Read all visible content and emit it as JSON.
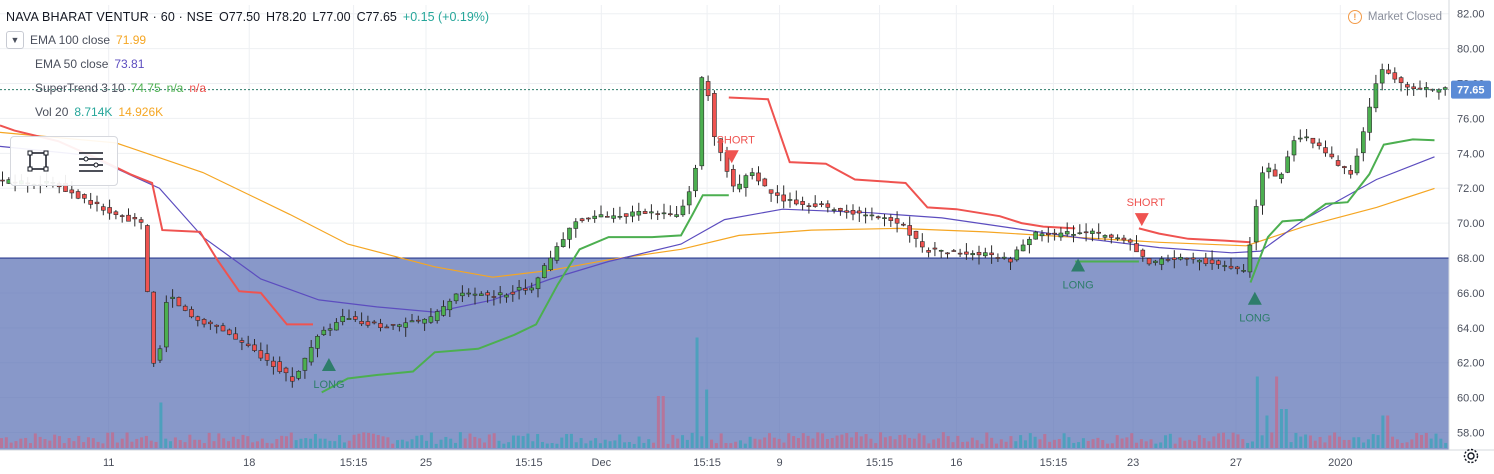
{
  "header": {
    "symbol": "NAVA BHARAT VENTUR · 60 · NSE",
    "open": "O77.50",
    "high": "H78.20",
    "low": "L77.00",
    "close": "C77.65",
    "change": "+0.15 (+0.19%)"
  },
  "indicators": [
    {
      "name": "EMA 100 close",
      "values": [
        "71.99"
      ],
      "colors": [
        "#f5a623"
      ]
    },
    {
      "name": "EMA 50 close",
      "values": [
        "73.81"
      ],
      "colors": [
        "#5c4dbf"
      ]
    },
    {
      "name": "SuperTrend 3 10",
      "values": [
        "74.75",
        "n/a",
        "n/a"
      ],
      "colors": [
        "#4caf50",
        "#4caf50",
        "#ef5350"
      ]
    },
    {
      "name": "Vol 20",
      "values": [
        "8.714K",
        "14.926K"
      ],
      "colors": [
        "#26a69a",
        "#f5a623"
      ]
    }
  ],
  "market_status": "Market Closed",
  "icons": {
    "collapse": "chevron-down-icon",
    "rectangle_tool": "rectangle-tool-icon",
    "settings_list": "list-icon",
    "gear": "gear-icon",
    "warning": "warning-icon"
  },
  "colors": {
    "up": "#4caf50",
    "down": "#ef5350",
    "ema100": "#f5a623",
    "ema50": "#5c4dbf",
    "supertrend_up": "#4caf50",
    "supertrend_down": "#ef5350",
    "zone": "#5a70b4",
    "price_label_bg": "#5b8bd6",
    "signal_long": "#2e7d6b",
    "signal_short": "#ef5350"
  },
  "chart_data": {
    "type": "candlestick",
    "ylim": [
      57,
      82.5
    ],
    "yticks": [
      "82.00",
      "80.00",
      "78.00",
      "76.00",
      "74.00",
      "72.00",
      "70.00",
      "68.00",
      "66.00",
      "64.00",
      "62.00",
      "60.00",
      "58.00"
    ],
    "xticks": [
      "11",
      "18",
      "15:15",
      "25",
      "15:15",
      "Dec",
      "15:15",
      "9",
      "15:15",
      "16",
      "15:15",
      "23",
      "27",
      "2020"
    ],
    "last_price": "77.65",
    "shaded_zone": {
      "from": 57,
      "to": 68
    },
    "signals": [
      {
        "label": "LONG",
        "type": "long",
        "x": 0.227,
        "price": 62.5
      },
      {
        "label": "SHORT",
        "type": "short",
        "x": 0.505,
        "price": 73.2
      },
      {
        "label": "LONG",
        "type": "long",
        "x": 0.744,
        "price": 68.2
      },
      {
        "label": "SHORT",
        "type": "short",
        "x": 0.788,
        "price": 69.6
      },
      {
        "label": "LONG",
        "type": "long",
        "x": 0.866,
        "price": 66.3
      }
    ],
    "price_path": [
      [
        0.0,
        72.4
      ],
      [
        0.04,
        72.3
      ],
      [
        0.065,
        71.2
      ],
      [
        0.08,
        70.5
      ],
      [
        0.1,
        70.0
      ],
      [
        0.11,
        60.8
      ],
      [
        0.118,
        66.0
      ],
      [
        0.135,
        64.6
      ],
      [
        0.155,
        64.0
      ],
      [
        0.17,
        63.1
      ],
      [
        0.19,
        62.0
      ],
      [
        0.205,
        61.0
      ],
      [
        0.222,
        63.5
      ],
      [
        0.24,
        64.6
      ],
      [
        0.255,
        64.2
      ],
      [
        0.275,
        64.1
      ],
      [
        0.3,
        64.5
      ],
      [
        0.32,
        66.0
      ],
      [
        0.345,
        65.8
      ],
      [
        0.37,
        66.4
      ],
      [
        0.385,
        68.3
      ],
      [
        0.4,
        70.2
      ],
      [
        0.42,
        70.4
      ],
      [
        0.45,
        70.6
      ],
      [
        0.47,
        70.4
      ],
      [
        0.482,
        72.5
      ],
      [
        0.488,
        79.4
      ],
      [
        0.495,
        75.0
      ],
      [
        0.51,
        71.7
      ],
      [
        0.52,
        73.1
      ],
      [
        0.535,
        71.6
      ],
      [
        0.55,
        71.2
      ],
      [
        0.57,
        71.0
      ],
      [
        0.59,
        70.6
      ],
      [
        0.61,
        70.3
      ],
      [
        0.625,
        70.0
      ],
      [
        0.64,
        68.5
      ],
      [
        0.66,
        68.3
      ],
      [
        0.68,
        68.2
      ],
      [
        0.7,
        67.9
      ],
      [
        0.715,
        69.4
      ],
      [
        0.735,
        69.3
      ],
      [
        0.75,
        69.6
      ],
      [
        0.765,
        69.2
      ],
      [
        0.78,
        69.0
      ],
      [
        0.795,
        67.6
      ],
      [
        0.81,
        68.0
      ],
      [
        0.83,
        67.9
      ],
      [
        0.85,
        67.5
      ],
      [
        0.862,
        67.2
      ],
      [
        0.868,
        70.2
      ],
      [
        0.875,
        73.5
      ],
      [
        0.885,
        72.3
      ],
      [
        0.895,
        74.8
      ],
      [
        0.905,
        74.9
      ],
      [
        0.92,
        73.8
      ],
      [
        0.935,
        72.8
      ],
      [
        0.945,
        75.6
      ],
      [
        0.955,
        79.0
      ],
      [
        0.97,
        77.9
      ],
      [
        0.985,
        77.65
      ]
    ],
    "ema50_path": [
      [
        0.0,
        74.4
      ],
      [
        0.06,
        73.9
      ],
      [
        0.11,
        72.0
      ],
      [
        0.14,
        69.2
      ],
      [
        0.18,
        66.8
      ],
      [
        0.22,
        65.6
      ],
      [
        0.26,
        65.2
      ],
      [
        0.3,
        64.9
      ],
      [
        0.34,
        65.6
      ],
      [
        0.38,
        66.8
      ],
      [
        0.42,
        67.8
      ],
      [
        0.47,
        68.8
      ],
      [
        0.5,
        70.2
      ],
      [
        0.54,
        70.8
      ],
      [
        0.6,
        70.6
      ],
      [
        0.65,
        70.3
      ],
      [
        0.7,
        69.7
      ],
      [
        0.75,
        69.1
      ],
      [
        0.8,
        68.6
      ],
      [
        0.85,
        68.3
      ],
      [
        0.87,
        68.4
      ],
      [
        0.9,
        70.2
      ],
      [
        0.95,
        72.5
      ],
      [
        0.99,
        73.8
      ]
    ],
    "ema100_path": [
      [
        0.0,
        75.2
      ],
      [
        0.08,
        74.6
      ],
      [
        0.14,
        72.9
      ],
      [
        0.2,
        70.5
      ],
      [
        0.24,
        68.8
      ],
      [
        0.3,
        67.5
      ],
      [
        0.34,
        66.9
      ],
      [
        0.38,
        67.3
      ],
      [
        0.42,
        67.9
      ],
      [
        0.47,
        68.5
      ],
      [
        0.51,
        69.3
      ],
      [
        0.56,
        69.6
      ],
      [
        0.62,
        69.7
      ],
      [
        0.68,
        69.5
      ],
      [
        0.74,
        69.2
      ],
      [
        0.8,
        68.9
      ],
      [
        0.86,
        68.7
      ],
      [
        0.9,
        69.8
      ],
      [
        0.95,
        70.9
      ],
      [
        0.99,
        71.99
      ]
    ],
    "supertrend_segments": [
      {
        "trend": "down",
        "points": [
          [
            0.0,
            75.6
          ],
          [
            0.01,
            75.3
          ],
          [
            0.04,
            74.7
          ],
          [
            0.07,
            73.6
          ],
          [
            0.09,
            72.8
          ],
          [
            0.105,
            72.3
          ],
          [
            0.112,
            69.6
          ],
          [
            0.138,
            69.5
          ],
          [
            0.15,
            67.9
          ],
          [
            0.165,
            66.1
          ],
          [
            0.18,
            66.0
          ],
          [
            0.198,
            64.2
          ],
          [
            0.216,
            64.2
          ]
        ]
      },
      {
        "trend": "up",
        "points": [
          [
            0.222,
            60.3
          ],
          [
            0.24,
            61.1
          ],
          [
            0.26,
            61.3
          ],
          [
            0.285,
            61.5
          ],
          [
            0.3,
            62.6
          ],
          [
            0.33,
            62.8
          ],
          [
            0.355,
            63.6
          ],
          [
            0.37,
            64.2
          ],
          [
            0.385,
            66.5
          ],
          [
            0.4,
            68.5
          ],
          [
            0.42,
            69.2
          ],
          [
            0.45,
            69.2
          ],
          [
            0.47,
            69.3
          ],
          [
            0.478,
            70.5
          ],
          [
            0.485,
            71.6
          ],
          [
            0.503,
            71.6
          ]
        ]
      },
      {
        "trend": "down",
        "points": [
          [
            0.503,
            77.2
          ],
          [
            0.53,
            77.1
          ],
          [
            0.545,
            73.5
          ],
          [
            0.57,
            73.4
          ],
          [
            0.59,
            72.5
          ],
          [
            0.625,
            72.3
          ],
          [
            0.64,
            70.9
          ],
          [
            0.66,
            70.8
          ],
          [
            0.69,
            70.4
          ],
          [
            0.705,
            70.0
          ],
          [
            0.72,
            69.8
          ],
          [
            0.742,
            69.7
          ]
        ]
      },
      {
        "trend": "up",
        "points": [
          [
            0.742,
            67.8
          ],
          [
            0.76,
            67.8
          ],
          [
            0.786,
            67.8
          ]
        ]
      },
      {
        "trend": "down",
        "points": [
          [
            0.786,
            69.7
          ],
          [
            0.8,
            69.4
          ],
          [
            0.82,
            69.1
          ],
          [
            0.845,
            69.0
          ],
          [
            0.863,
            68.9
          ]
        ]
      },
      {
        "trend": "up",
        "points": [
          [
            0.863,
            66.6
          ],
          [
            0.875,
            69.2
          ],
          [
            0.885,
            70.1
          ],
          [
            0.9,
            70.2
          ],
          [
            0.915,
            71.1
          ],
          [
            0.93,
            71.2
          ],
          [
            0.945,
            72.8
          ],
          [
            0.955,
            74.5
          ],
          [
            0.975,
            74.8
          ],
          [
            0.99,
            74.75
          ]
        ]
      }
    ],
    "volume_spikes": [
      {
        "x": 0.11,
        "v": 0.35
      },
      {
        "x": 0.48,
        "v": 0.85
      },
      {
        "x": 0.488,
        "v": 0.45
      },
      {
        "x": 0.455,
        "v": 0.4
      },
      {
        "x": 0.866,
        "v": 0.55
      },
      {
        "x": 0.872,
        "v": 0.25
      },
      {
        "x": 0.88,
        "v": 0.55
      },
      {
        "x": 0.885,
        "v": 0.3
      },
      {
        "x": 0.955,
        "v": 0.25
      }
    ]
  }
}
